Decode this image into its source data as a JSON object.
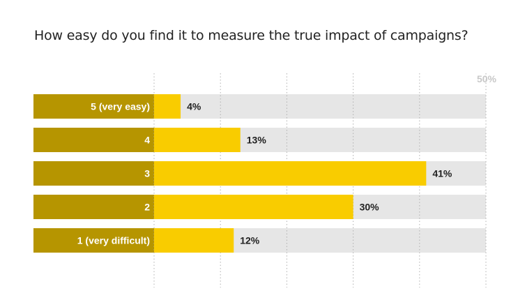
{
  "chart_data": {
    "type": "bar",
    "orientation": "horizontal",
    "title": "How easy do you find it to measure the true impact of campaigns?",
    "categories": [
      "5 (very easy)",
      "4",
      "3",
      "2",
      "1 (very difficult)"
    ],
    "values": [
      4,
      13,
      41,
      30,
      12
    ],
    "value_labels": [
      "4%",
      "13%",
      "41%",
      "30%",
      "12%"
    ],
    "xlim": [
      0,
      50
    ],
    "max_label": "50%",
    "grid": true,
    "colors": {
      "bar": "#f9cc00",
      "category_band": "#b69500",
      "track": "#e6e6e6",
      "grid": "#b0b0b0",
      "max_label": "#c8c8c8"
    }
  }
}
